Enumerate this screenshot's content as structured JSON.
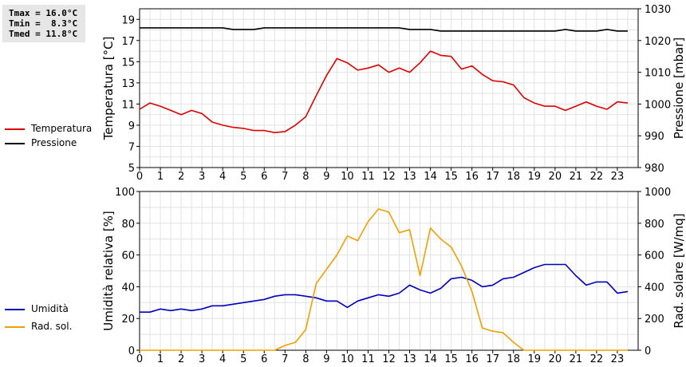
{
  "stats": {
    "tmax": "Tmax = 16.0°C",
    "tmin": "Tmin =  8.3°C",
    "tmed": "Tmed = 11.8°C"
  },
  "legend_top": [
    {
      "label": "Temperatura",
      "color": "#dd0000"
    },
    {
      "label": "Pressione",
      "color": "#000000"
    }
  ],
  "legend_bottom": [
    {
      "label": "Umidità",
      "color": "#0000bb"
    },
    {
      "label": "Rad. sol.",
      "color": "#eea000"
    }
  ],
  "chart_data": [
    {
      "type": "line",
      "xlim": [
        0,
        24
      ],
      "x_ticks": [
        0,
        1,
        2,
        3,
        4,
        5,
        6,
        7,
        8,
        9,
        10,
        11,
        12,
        13,
        14,
        15,
        16,
        17,
        18,
        19,
        20,
        21,
        22,
        23
      ],
      "left_axis": {
        "label": "Temperatura [°C]",
        "ylim": [
          5,
          20
        ],
        "ticks": [
          5,
          7,
          9,
          11,
          13,
          15,
          17,
          19
        ]
      },
      "right_axis": {
        "label": "Pressione [mbar]",
        "ylim": [
          980,
          1030
        ],
        "ticks": [
          980,
          990,
          1000,
          1010,
          1020,
          1030
        ]
      },
      "grid": true,
      "legend_position": "left",
      "series": [
        {
          "name": "Temperatura",
          "axis": "left",
          "color": "#dd0000",
          "x": [
            0,
            0.5,
            1,
            1.5,
            2,
            2.5,
            3,
            3.5,
            4,
            4.5,
            5,
            5.5,
            6,
            6.5,
            7,
            7.5,
            8,
            8.5,
            9,
            9.5,
            10,
            10.5,
            11,
            11.5,
            12,
            12.5,
            13,
            13.5,
            14,
            14.5,
            15,
            15.5,
            16,
            16.5,
            17,
            17.5,
            18,
            18.5,
            19,
            19.5,
            20,
            20.5,
            21,
            21.5,
            22,
            22.5,
            23,
            23.5
          ],
          "y": [
            10.5,
            11.1,
            10.8,
            10.4,
            10.0,
            10.4,
            10.1,
            9.3,
            9.0,
            8.8,
            8.7,
            8.5,
            8.5,
            8.3,
            8.4,
            9.0,
            9.8,
            11.8,
            13.7,
            15.3,
            14.9,
            14.2,
            14.4,
            14.7,
            14.0,
            14.4,
            14.0,
            14.9,
            16.0,
            15.6,
            15.5,
            14.3,
            14.6,
            13.8,
            13.2,
            13.1,
            12.8,
            11.6,
            11.1,
            10.8,
            10.8,
            10.4,
            10.8,
            11.2,
            10.8,
            10.5,
            11.2,
            11.1
          ]
        },
        {
          "name": "Pressione",
          "axis": "right",
          "color": "#000000",
          "x": [
            0,
            0.5,
            1,
            1.5,
            2,
            2.5,
            3,
            3.5,
            4,
            4.5,
            5,
            5.5,
            6,
            6.5,
            7,
            7.5,
            8,
            8.5,
            9,
            9.5,
            10,
            10.5,
            11,
            11.5,
            12,
            12.5,
            13,
            13.5,
            14,
            14.5,
            15,
            15.5,
            16,
            16.5,
            17,
            17.5,
            18,
            18.5,
            19,
            19.5,
            20,
            20.5,
            21,
            21.5,
            22,
            22.5,
            23,
            23.5
          ],
          "y": [
            1024,
            1024,
            1024,
            1024,
            1024,
            1024,
            1024,
            1024,
            1024,
            1023.5,
            1023.5,
            1023.5,
            1024,
            1024,
            1024,
            1024,
            1024,
            1024,
            1024,
            1024,
            1024,
            1024,
            1024,
            1024,
            1024,
            1024,
            1023.5,
            1023.5,
            1023.5,
            1023,
            1023,
            1023,
            1023,
            1023,
            1023,
            1023,
            1023,
            1023,
            1023,
            1023,
            1023,
            1023.5,
            1023,
            1023,
            1023,
            1023.5,
            1023,
            1023
          ]
        }
      ]
    },
    {
      "type": "line",
      "xlim": [
        0,
        24
      ],
      "x_ticks": [
        0,
        1,
        2,
        3,
        4,
        5,
        6,
        7,
        8,
        9,
        10,
        11,
        12,
        13,
        14,
        15,
        16,
        17,
        18,
        19,
        20,
        21,
        22,
        23
      ],
      "left_axis": {
        "label": "Umidità relativa [%]",
        "ylim": [
          0,
          100
        ],
        "ticks": [
          0,
          20,
          40,
          60,
          80,
          100
        ]
      },
      "right_axis": {
        "label": "Rad. solare [W/mq]",
        "ylim": [
          0,
          1000
        ],
        "ticks": [
          0,
          200,
          400,
          600,
          800,
          1000
        ]
      },
      "grid": true,
      "legend_position": "left",
      "series": [
        {
          "name": "Umidità",
          "axis": "left",
          "color": "#0000bb",
          "x": [
            0,
            0.5,
            1,
            1.5,
            2,
            2.5,
            3,
            3.5,
            4,
            4.5,
            5,
            5.5,
            6,
            6.5,
            7,
            7.5,
            8,
            8.5,
            9,
            9.5,
            10,
            10.5,
            11,
            11.5,
            12,
            12.5,
            13,
            13.5,
            14,
            14.5,
            15,
            15.5,
            16,
            16.5,
            17,
            17.5,
            18,
            18.5,
            19,
            19.5,
            20,
            20.5,
            21,
            21.5,
            22,
            22.5,
            23,
            23.5
          ],
          "y": [
            24,
            24,
            26,
            25,
            26,
            25,
            26,
            28,
            28,
            29,
            30,
            31,
            32,
            34,
            35,
            35,
            34,
            33,
            31,
            31,
            27,
            31,
            33,
            35,
            34,
            36,
            41,
            38,
            36,
            39,
            45,
            46,
            44,
            40,
            41,
            45,
            46,
            49,
            52,
            54,
            54,
            54,
            47,
            41,
            43,
            43,
            36,
            37
          ]
        },
        {
          "name": "Rad. sol.",
          "axis": "right",
          "color": "#eea000",
          "x": [
            0,
            0.5,
            1,
            1.5,
            2,
            2.5,
            3,
            3.5,
            4,
            4.5,
            5,
            5.5,
            6,
            6.5,
            7,
            7.5,
            8,
            8.5,
            9,
            9.5,
            10,
            10.5,
            11,
            11.5,
            12,
            12.5,
            13,
            13.5,
            14,
            14.5,
            15,
            15.5,
            16,
            16.5,
            17,
            17.5,
            18,
            18.5,
            19,
            19.5,
            20,
            20.5,
            21,
            21.5,
            22,
            22.5,
            23,
            23.5
          ],
          "y": [
            0,
            0,
            0,
            0,
            0,
            0,
            0,
            0,
            0,
            0,
            0,
            0,
            0,
            0,
            30,
            50,
            130,
            420,
            510,
            600,
            720,
            690,
            810,
            890,
            870,
            740,
            760,
            470,
            770,
            700,
            650,
            530,
            370,
            140,
            120,
            110,
            50,
            0,
            0,
            0,
            0,
            0,
            0,
            0,
            0,
            0,
            0,
            0
          ]
        }
      ]
    }
  ]
}
